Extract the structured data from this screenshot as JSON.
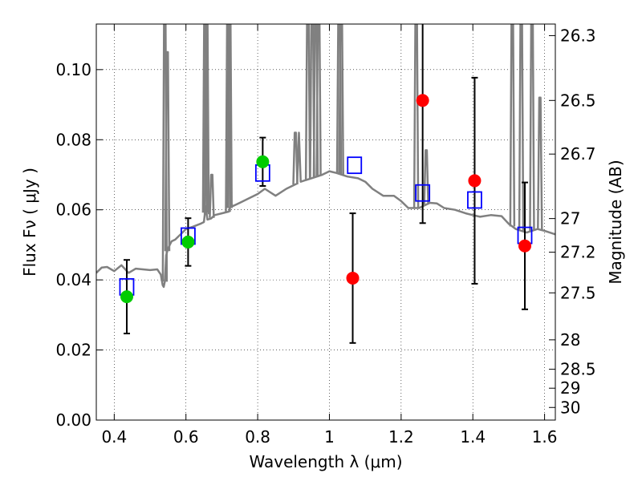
{
  "chart_data": {
    "type": "scatter",
    "title": "",
    "xlabel": "Wavelength  λ (μm)",
    "ylabel": "Flux  Fν  ( μJy )",
    "y2label": "Magnitude (AB)",
    "xlim": [
      0.35,
      1.63
    ],
    "ylim": [
      0.0,
      0.113
    ],
    "grid": true,
    "x_ticks": [
      0.4,
      0.6,
      0.8,
      1.0,
      1.2,
      1.4,
      1.6
    ],
    "x_tick_labels": [
      "0.4",
      "0.6",
      "0.8",
      "1",
      "1.2",
      "1.4",
      "1.6"
    ],
    "y_ticks": [
      0.0,
      0.02,
      0.04,
      0.06,
      0.08,
      0.1
    ],
    "y_tick_labels": [
      "0.00",
      "0.02",
      "0.04",
      "0.06",
      "0.08",
      "0.10"
    ],
    "y2_ticks": [
      {
        "label": "26.3",
        "flux": 0.1097
      },
      {
        "label": "26.5",
        "flux": 0.0912
      },
      {
        "label": "26.7",
        "flux": 0.0759
      },
      {
        "label": "27",
        "flux": 0.0575
      },
      {
        "label": "27.2",
        "flux": 0.0479
      },
      {
        "label": "27.5",
        "flux": 0.0363
      },
      {
        "label": "28",
        "flux": 0.0229
      },
      {
        "label": "28.5",
        "flux": 0.0145
      },
      {
        "label": "29",
        "flux": 0.0091
      },
      {
        "label": "30",
        "flux": 0.0036
      }
    ],
    "series": [
      {
        "marker": "circle",
        "color": "#00cc00",
        "points": [
          {
            "x": 0.435,
            "y": 0.0352,
            "err": 0.0105
          },
          {
            "x": 0.606,
            "y": 0.0508,
            "err": 0.0068
          },
          {
            "x": 0.814,
            "y": 0.0737,
            "err": 0.0069
          }
        ]
      },
      {
        "marker": "circle",
        "color": "#ff0000",
        "points": [
          {
            "x": 1.065,
            "y": 0.0405,
            "err": 0.0185
          },
          {
            "x": 1.26,
            "y": 0.0912,
            "err": 0.035
          },
          {
            "x": 1.405,
            "y": 0.0683,
            "err": 0.0294
          },
          {
            "x": 1.545,
            "y": 0.0497,
            "err": 0.0181
          }
        ]
      },
      {
        "marker": "open-square",
        "color": "#0000ff",
        "points": [
          {
            "x": 0.435,
            "y": 0.038
          },
          {
            "x": 0.606,
            "y": 0.0525
          },
          {
            "x": 0.814,
            "y": 0.0705
          },
          {
            "x": 1.07,
            "y": 0.0727
          },
          {
            "x": 1.26,
            "y": 0.0648
          },
          {
            "x": 1.405,
            "y": 0.0628
          },
          {
            "x": 1.545,
            "y": 0.0527
          }
        ]
      },
      {
        "type": "line",
        "color": "#808080",
        "x": [
          0.35,
          0.365,
          0.38,
          0.4,
          0.42,
          0.44,
          0.46,
          0.48,
          0.5,
          0.52,
          0.53,
          0.535,
          0.538,
          0.541,
          0.545,
          0.55,
          0.56,
          0.57,
          0.58,
          0.59,
          0.6,
          0.62,
          0.64,
          0.65,
          0.655,
          0.66,
          0.67,
          0.68,
          0.7,
          0.72,
          0.725,
          0.73,
          0.75,
          0.78,
          0.8,
          0.82,
          0.85,
          0.88,
          0.91,
          0.915,
          0.92,
          0.95,
          0.98,
          1.0,
          1.02,
          1.05,
          1.08,
          1.1,
          1.12,
          1.15,
          1.18,
          1.2,
          1.22,
          1.25,
          1.28,
          1.3,
          1.32,
          1.35,
          1.38,
          1.4,
          1.42,
          1.45,
          1.48,
          1.5,
          1.52,
          1.55,
          1.58,
          1.6,
          1.63
        ],
        "y": [
          0.042,
          0.0435,
          0.0437,
          0.0425,
          0.0442,
          0.042,
          0.0432,
          0.043,
          0.0428,
          0.043,
          0.0415,
          0.0385,
          0.038,
          0.0395,
          0.047,
          0.049,
          0.051,
          0.0515,
          0.0525,
          0.0535,
          0.0545,
          0.0552,
          0.056,
          0.0565,
          0.061,
          0.0572,
          0.0575,
          0.0585,
          0.059,
          0.0595,
          0.062,
          0.061,
          0.062,
          0.0635,
          0.0645,
          0.066,
          0.064,
          0.066,
          0.0675,
          0.082,
          0.068,
          0.069,
          0.07,
          0.071,
          0.0705,
          0.0695,
          0.069,
          0.068,
          0.066,
          0.064,
          0.064,
          0.0625,
          0.0605,
          0.0605,
          0.062,
          0.0618,
          0.0605,
          0.06,
          0.059,
          0.0585,
          0.058,
          0.0585,
          0.0582,
          0.056,
          0.0545,
          0.0535,
          0.0545,
          0.054,
          0.053
        ]
      }
    ],
    "emission_lines": [
      {
        "x": 0.541,
        "peak": 0.122
      },
      {
        "x": 0.548,
        "peak": 0.105
      },
      {
        "x": 0.653,
        "peak": 0.122
      },
      {
        "x": 0.658,
        "peak": 0.12
      },
      {
        "x": 0.672,
        "peak": 0.07
      },
      {
        "x": 0.717,
        "peak": 0.122
      },
      {
        "x": 0.722,
        "peak": 0.122
      },
      {
        "x": 0.905,
        "peak": 0.082
      },
      {
        "x": 0.94,
        "peak": 0.122
      },
      {
        "x": 0.952,
        "peak": 0.122
      },
      {
        "x": 0.962,
        "peak": 0.122
      },
      {
        "x": 0.97,
        "peak": 0.122
      },
      {
        "x": 1.027,
        "peak": 0.122
      },
      {
        "x": 1.033,
        "peak": 0.122
      },
      {
        "x": 1.242,
        "peak": 0.122
      },
      {
        "x": 1.27,
        "peak": 0.077
      },
      {
        "x": 1.51,
        "peak": 0.122
      },
      {
        "x": 1.535,
        "peak": 0.122
      },
      {
        "x": 1.565,
        "peak": 0.122
      },
      {
        "x": 1.587,
        "peak": 0.092
      }
    ]
  }
}
